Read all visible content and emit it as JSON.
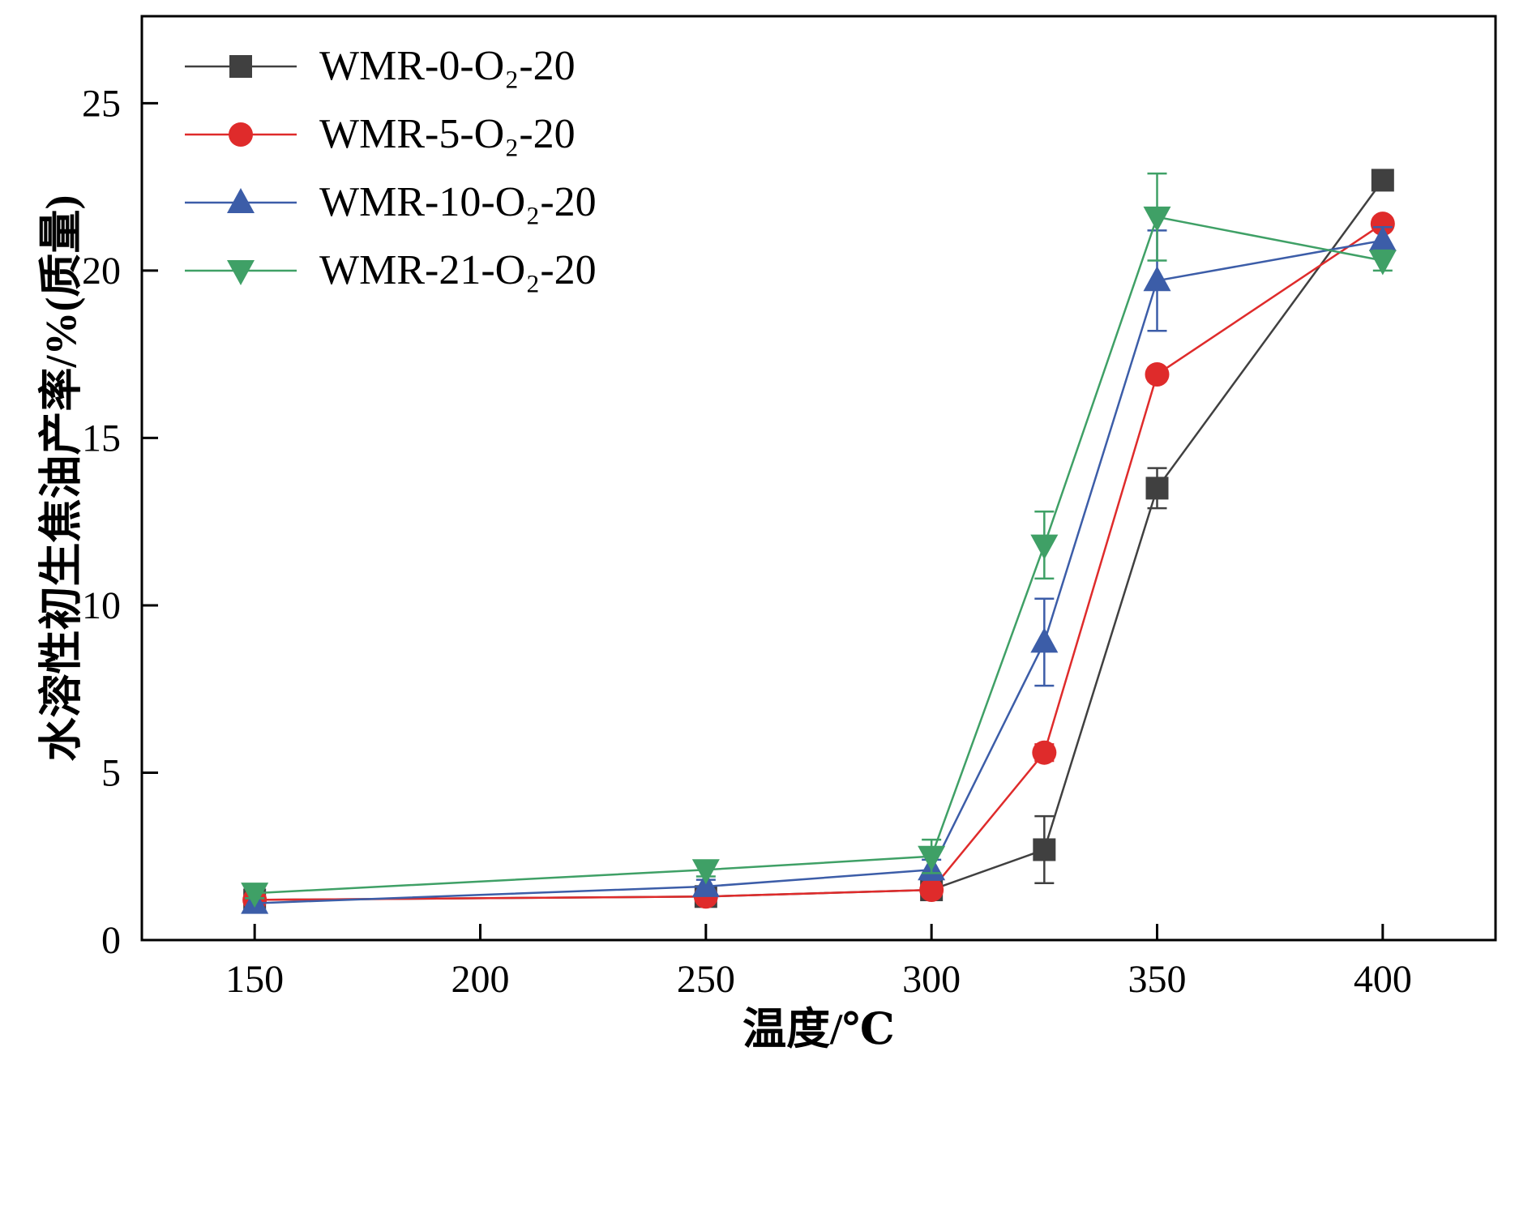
{
  "figure": {
    "background": "#ffffff",
    "axis_color": "#000000"
  },
  "chart_data": {
    "type": "line",
    "title": "",
    "xlabel": "温度/℃",
    "ylabel": "水溶性初生焦油产率/%(质量)",
    "x": [
      150,
      250,
      300,
      325,
      350,
      400
    ],
    "xlim": [
      125,
      425
    ],
    "ylim": [
      0,
      27.6
    ],
    "xticks": [
      150,
      200,
      250,
      300,
      350,
      400
    ],
    "yticks": [
      0,
      5,
      10,
      15,
      20,
      25
    ],
    "grid": false,
    "legend_position": "top-left",
    "series": [
      {
        "name": "WMR-0-O₂-20",
        "color": "#404040",
        "marker": "square",
        "values": [
          1.2,
          1.3,
          1.5,
          2.7,
          13.5,
          22.7
        ],
        "errors": [
          0.15,
          0.2,
          0.2,
          1.0,
          0.6,
          0.1
        ]
      },
      {
        "name": "WMR-5-O₂-20",
        "color": "#df2b2b",
        "marker": "circle",
        "values": [
          1.2,
          1.3,
          1.5,
          5.6,
          16.9,
          21.4
        ],
        "errors": [
          0.15,
          0.15,
          0.2,
          0.25,
          0.2,
          0.1
        ]
      },
      {
        "name": "WMR-10-O₂-20",
        "color": "#3c5da8",
        "marker": "triangle-up",
        "values": [
          1.1,
          1.6,
          2.1,
          8.9,
          19.7,
          20.9
        ],
        "errors": [
          0.15,
          0.2,
          0.3,
          1.3,
          1.5,
          0.4
        ]
      },
      {
        "name": "WMR-21-O₂-20",
        "color": "#3fa066",
        "marker": "triangle-down",
        "values": [
          1.4,
          2.1,
          2.5,
          11.8,
          21.6,
          20.3
        ],
        "errors": [
          0.15,
          0.2,
          0.5,
          1.0,
          1.3,
          0.3
        ]
      }
    ]
  }
}
